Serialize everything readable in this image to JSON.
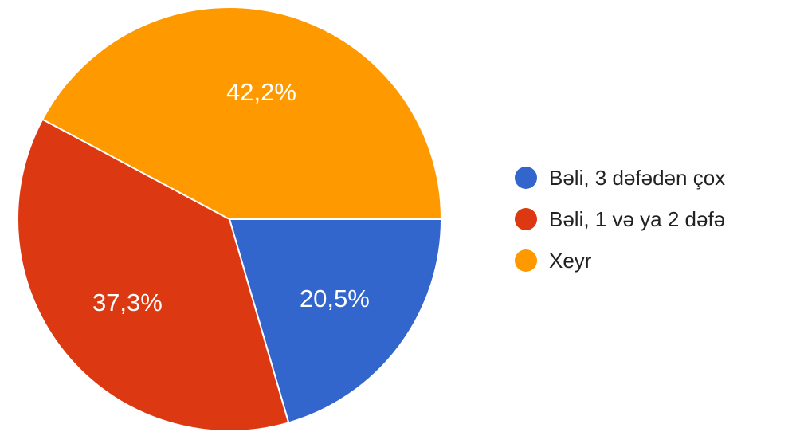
{
  "chart_data": {
    "type": "pie",
    "title": "",
    "categories": [
      "Bəli, 3 dəfədən çox",
      "Bəli, 1 və ya 2 dəfə",
      "Xeyr"
    ],
    "values": [
      20.5,
      37.3,
      42.2
    ],
    "labels": [
      "20,5%",
      "37,3%",
      "42,2%"
    ],
    "colors": [
      "#3366CC",
      "#DC3912",
      "#FF9900"
    ],
    "legend_position": "right",
    "start_angle": "3 o'clock",
    "direction": "clockwise"
  }
}
